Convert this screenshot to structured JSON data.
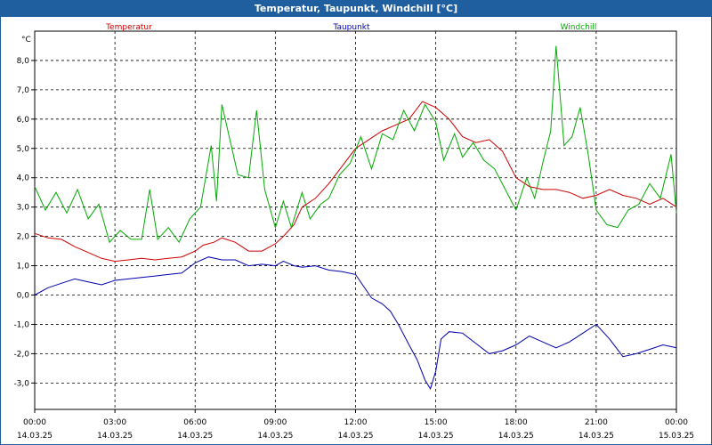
{
  "window": {
    "title": "Temperatur, Taupunkt, Windchill [°C]"
  },
  "chart_data": {
    "type": "line",
    "ylabel": "°C",
    "ylim": [
      -3.9,
      9.0
    ],
    "yticks": [
      -3.0,
      -2.0,
      -1.0,
      0.0,
      1.0,
      2.0,
      3.0,
      4.0,
      5.0,
      6.0,
      7.0,
      8.0
    ],
    "ytick_labels": [
      "-3,0",
      "-2,0",
      "-1,0",
      "0,0",
      "1,0",
      "2,0",
      "3,0",
      "4,0",
      "5,0",
      "6,0",
      "7,0",
      "8,0"
    ],
    "xlim": [
      0,
      24
    ],
    "xticks": [
      0,
      3,
      6,
      9,
      12,
      15,
      18,
      21,
      24
    ],
    "xtick_labels": [
      {
        "time": "00:00",
        "date": "14.03.25"
      },
      {
        "time": "03:00",
        "date": "14.03.25"
      },
      {
        "time": "06:00",
        "date": "14.03.25"
      },
      {
        "time": "09:00",
        "date": "14.03.25"
      },
      {
        "time": "12:00",
        "date": "14.03.25"
      },
      {
        "time": "15:00",
        "date": "14.03.25"
      },
      {
        "time": "18:00",
        "date": "14.03.25"
      },
      {
        "time": "21:00",
        "date": "14.03.25"
      },
      {
        "time": "00:00",
        "date": "15.03.25"
      }
    ],
    "grid": true,
    "legend_position": "top",
    "series": [
      {
        "name": "Temperatur",
        "color": "#cc0000",
        "points": [
          [
            0,
            2.1
          ],
          [
            0.5,
            1.95
          ],
          [
            1,
            1.9
          ],
          [
            1.5,
            1.65
          ],
          [
            2,
            1.45
          ],
          [
            2.5,
            1.25
          ],
          [
            3,
            1.15
          ],
          [
            3.5,
            1.2
          ],
          [
            4,
            1.25
          ],
          [
            4.5,
            1.2
          ],
          [
            5,
            1.25
          ],
          [
            5.5,
            1.3
          ],
          [
            6,
            1.5
          ],
          [
            6.3,
            1.7
          ],
          [
            6.7,
            1.8
          ],
          [
            7,
            1.95
          ],
          [
            7.5,
            1.8
          ],
          [
            8,
            1.5
          ],
          [
            8.5,
            1.5
          ],
          [
            9,
            1.75
          ],
          [
            9.3,
            2.0
          ],
          [
            9.7,
            2.4
          ],
          [
            10,
            3.0
          ],
          [
            10.5,
            3.3
          ],
          [
            11,
            3.8
          ],
          [
            11.5,
            4.4
          ],
          [
            12,
            5.0
          ],
          [
            12.5,
            5.3
          ],
          [
            13,
            5.6
          ],
          [
            13.5,
            5.8
          ],
          [
            14,
            6.0
          ],
          [
            14.5,
            6.6
          ],
          [
            15,
            6.4
          ],
          [
            15.5,
            6.0
          ],
          [
            16,
            5.4
          ],
          [
            16.5,
            5.2
          ],
          [
            17,
            5.3
          ],
          [
            17.5,
            4.9
          ],
          [
            18,
            4.0
          ],
          [
            18.5,
            3.7
          ],
          [
            19,
            3.6
          ],
          [
            19.5,
            3.6
          ],
          [
            20,
            3.5
          ],
          [
            20.5,
            3.3
          ],
          [
            21,
            3.4
          ],
          [
            21.5,
            3.6
          ],
          [
            22,
            3.4
          ],
          [
            22.5,
            3.3
          ],
          [
            23,
            3.1
          ],
          [
            23.5,
            3.3
          ],
          [
            24,
            3.0
          ]
        ]
      },
      {
        "name": "Taupunkt",
        "color": "#0000aa",
        "points": [
          [
            0,
            0.0
          ],
          [
            0.5,
            0.25
          ],
          [
            1,
            0.4
          ],
          [
            1.5,
            0.55
          ],
          [
            2,
            0.45
          ],
          [
            2.5,
            0.35
          ],
          [
            3,
            0.5
          ],
          [
            3.5,
            0.55
          ],
          [
            4,
            0.6
          ],
          [
            4.5,
            0.65
          ],
          [
            5,
            0.7
          ],
          [
            5.5,
            0.75
          ],
          [
            6,
            1.1
          ],
          [
            6.5,
            1.3
          ],
          [
            7,
            1.2
          ],
          [
            7.5,
            1.2
          ],
          [
            8,
            1.0
          ],
          [
            8.5,
            1.05
          ],
          [
            9,
            1.0
          ],
          [
            9.3,
            1.15
          ],
          [
            9.7,
            1.0
          ],
          [
            10,
            0.95
          ],
          [
            10.5,
            1.0
          ],
          [
            11,
            0.85
          ],
          [
            11.5,
            0.8
          ],
          [
            12,
            0.7
          ],
          [
            12.3,
            0.3
          ],
          [
            12.6,
            -0.1
          ],
          [
            13,
            -0.3
          ],
          [
            13.3,
            -0.55
          ],
          [
            13.6,
            -1.0
          ],
          [
            14,
            -1.7
          ],
          [
            14.3,
            -2.2
          ],
          [
            14.6,
            -2.9
          ],
          [
            14.8,
            -3.2
          ],
          [
            15,
            -2.6
          ],
          [
            15.2,
            -1.5
          ],
          [
            15.5,
            -1.25
          ],
          [
            16,
            -1.3
          ],
          [
            16.5,
            -1.65
          ],
          [
            17,
            -2.0
          ],
          [
            17.5,
            -1.9
          ],
          [
            18,
            -1.7
          ],
          [
            18.5,
            -1.4
          ],
          [
            19,
            -1.6
          ],
          [
            19.5,
            -1.8
          ],
          [
            20,
            -1.6
          ],
          [
            20.5,
            -1.3
          ],
          [
            21,
            -1.0
          ],
          [
            21.5,
            -1.5
          ],
          [
            22,
            -2.1
          ],
          [
            22.5,
            -2.0
          ],
          [
            23,
            -1.85
          ],
          [
            23.5,
            -1.7
          ],
          [
            24,
            -1.8
          ]
        ]
      },
      {
        "name": "Windchill",
        "color": "#00aa00",
        "points": [
          [
            0,
            3.7
          ],
          [
            0.4,
            2.9
          ],
          [
            0.8,
            3.5
          ],
          [
            1.2,
            2.8
          ],
          [
            1.6,
            3.6
          ],
          [
            2,
            2.6
          ],
          [
            2.4,
            3.1
          ],
          [
            2.8,
            1.8
          ],
          [
            3.2,
            2.2
          ],
          [
            3.6,
            1.9
          ],
          [
            4,
            1.9
          ],
          [
            4.3,
            3.6
          ],
          [
            4.6,
            1.9
          ],
          [
            5,
            2.3
          ],
          [
            5.4,
            1.8
          ],
          [
            5.8,
            2.6
          ],
          [
            6.2,
            3.0
          ],
          [
            6.6,
            5.1
          ],
          [
            6.8,
            3.2
          ],
          [
            7.0,
            6.5
          ],
          [
            7.3,
            5.3
          ],
          [
            7.6,
            4.1
          ],
          [
            8.0,
            4.0
          ],
          [
            8.3,
            6.3
          ],
          [
            8.6,
            3.6
          ],
          [
            9,
            2.3
          ],
          [
            9.3,
            3.2
          ],
          [
            9.6,
            2.3
          ],
          [
            10,
            3.5
          ],
          [
            10.3,
            2.6
          ],
          [
            10.7,
            3.1
          ],
          [
            11,
            3.3
          ],
          [
            11.4,
            4.1
          ],
          [
            11.8,
            4.5
          ],
          [
            12.2,
            5.4
          ],
          [
            12.6,
            4.3
          ],
          [
            13,
            5.5
          ],
          [
            13.4,
            5.3
          ],
          [
            13.8,
            6.3
          ],
          [
            14.2,
            5.6
          ],
          [
            14.6,
            6.5
          ],
          [
            15,
            5.9
          ],
          [
            15.3,
            4.6
          ],
          [
            15.7,
            5.5
          ],
          [
            16,
            4.7
          ],
          [
            16.4,
            5.2
          ],
          [
            16.8,
            4.6
          ],
          [
            17.2,
            4.3
          ],
          [
            17.6,
            3.6
          ],
          [
            18,
            2.9
          ],
          [
            18.4,
            4.0
          ],
          [
            18.7,
            3.3
          ],
          [
            19.0,
            4.5
          ],
          [
            19.3,
            5.6
          ],
          [
            19.5,
            8.5
          ],
          [
            19.8,
            5.1
          ],
          [
            20.1,
            5.4
          ],
          [
            20.4,
            6.4
          ],
          [
            20.7,
            4.8
          ],
          [
            21.0,
            2.9
          ],
          [
            21.4,
            2.4
          ],
          [
            21.8,
            2.3
          ],
          [
            22.2,
            2.9
          ],
          [
            22.6,
            3.1
          ],
          [
            23,
            3.8
          ],
          [
            23.4,
            3.3
          ],
          [
            23.8,
            4.8
          ],
          [
            24,
            2.8
          ]
        ]
      }
    ]
  }
}
